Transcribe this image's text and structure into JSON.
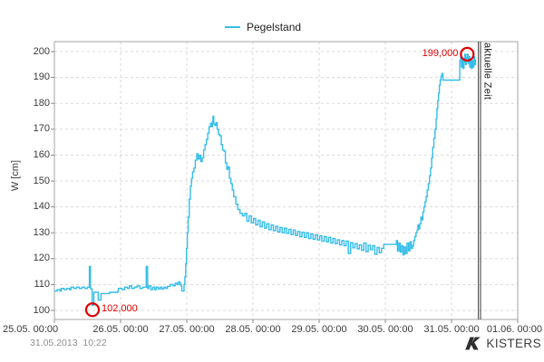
{
  "legend": {
    "label": "Pegelstand"
  },
  "y_axis_title": "W [cm]",
  "footer": {
    "timestamp": "31.05.2013  10:22",
    "brand": "KISTERS"
  },
  "colors": {
    "series": "#35bdea",
    "annotation": "#e00000",
    "grid": "#d9d9d9",
    "plot_border": "#a6a6a6",
    "tick": "#8a8a8a",
    "current_time_line": "#4a4a4a"
  },
  "chart_data": {
    "type": "line",
    "title": "",
    "ylabel": "W [cm]",
    "xlabel": "",
    "legend_position": "top",
    "grid": true,
    "x_unit": "hours since 25.05.2013 00:00",
    "x_range": [
      0,
      168
    ],
    "y_range": [
      96.5,
      203.8
    ],
    "y_ticks": [
      100,
      110,
      120,
      130,
      140,
      150,
      160,
      170,
      180,
      190,
      200
    ],
    "x_ticks": [
      {
        "hours": 0,
        "label": "25.05. 00:00"
      },
      {
        "hours": 24,
        "label": "26.05. 00:00"
      },
      {
        "hours": 48,
        "label": "27.05. 00:00"
      },
      {
        "hours": 72,
        "label": "28.05. 00:00"
      },
      {
        "hours": 96,
        "label": "29.05. 00:00"
      },
      {
        "hours": 120,
        "label": "30.05. 00:00"
      },
      {
        "hours": 144,
        "label": "31.05. 00:00"
      },
      {
        "hours": 168,
        "label": "01.06. 00:00"
      }
    ],
    "annotations": [
      {
        "label": "102,000",
        "hours": 13.8,
        "value": 102,
        "text_side": "right"
      },
      {
        "label": "199,000",
        "hours": 149.7,
        "value": 199,
        "text_side": "left"
      }
    ],
    "current_time": {
      "hours": 154.1,
      "label": "aktuelle Zeit"
    },
    "series": [
      {
        "name": "Pegelstand",
        "color": "#35bdea",
        "interpolation": "step-after",
        "points": [
          [
            0,
            107.5
          ],
          [
            1,
            108
          ],
          [
            2,
            107.5
          ],
          [
            2.5,
            108.5
          ],
          [
            3.5,
            108
          ],
          [
            4.5,
            108.5
          ],
          [
            5.5,
            108
          ],
          [
            6,
            109
          ],
          [
            7,
            108.5
          ],
          [
            8,
            109
          ],
          [
            9,
            108.5
          ],
          [
            10,
            109
          ],
          [
            11,
            108.5
          ],
          [
            12,
            109
          ],
          [
            12.6,
            109
          ],
          [
            12.7,
            117
          ],
          [
            12.9,
            117
          ],
          [
            13.1,
            108.5
          ],
          [
            13.5,
            108
          ],
          [
            13.7,
            102
          ],
          [
            14.1,
            102
          ],
          [
            14.3,
            107
          ],
          [
            15.6,
            107
          ],
          [
            15.9,
            104
          ],
          [
            16.6,
            104
          ],
          [
            16.9,
            106.5
          ],
          [
            18,
            106.5
          ],
          [
            20,
            107
          ],
          [
            22,
            107
          ],
          [
            23,
            107.5
          ],
          [
            23.2,
            108.5
          ],
          [
            24.5,
            108
          ],
          [
            25.5,
            109
          ],
          [
            26.5,
            108.5
          ],
          [
            27.2,
            109.5
          ],
          [
            28,
            108.5
          ],
          [
            29,
            109
          ],
          [
            30,
            109.5
          ],
          [
            31,
            108.5
          ],
          [
            32,
            109
          ],
          [
            33,
            109
          ],
          [
            33.3,
            117
          ],
          [
            33.6,
            117
          ],
          [
            33.8,
            108.5
          ],
          [
            34.3,
            109.5
          ],
          [
            35,
            108
          ],
          [
            35.7,
            109
          ],
          [
            36.4,
            108
          ],
          [
            37,
            109
          ],
          [
            37.7,
            108.3
          ],
          [
            38.4,
            109
          ],
          [
            39,
            108.3
          ],
          [
            39.7,
            109
          ],
          [
            40.4,
            108.5
          ],
          [
            41,
            109.3
          ],
          [
            42,
            110
          ],
          [
            43,
            109.5
          ],
          [
            43.8,
            110.5
          ],
          [
            44.5,
            110
          ],
          [
            45,
            111
          ],
          [
            45.6,
            110
          ],
          [
            46,
            109.5
          ],
          [
            46.2,
            107.5
          ],
          [
            46.8,
            107.5
          ],
          [
            47,
            110
          ],
          [
            47.3,
            113
          ],
          [
            47.6,
            118
          ],
          [
            47.9,
            124
          ],
          [
            48.2,
            130
          ],
          [
            48.5,
            136
          ],
          [
            48.9,
            143
          ],
          [
            49.3,
            148
          ],
          [
            49.7,
            151
          ],
          [
            50.1,
            153.5
          ],
          [
            50.6,
            155
          ],
          [
            51.1,
            158
          ],
          [
            51.6,
            160.5
          ],
          [
            52.1,
            158.5
          ],
          [
            52.6,
            160
          ],
          [
            53.1,
            157.5
          ],
          [
            53.6,
            159
          ],
          [
            54.1,
            162
          ],
          [
            54.6,
            164
          ],
          [
            55.1,
            166
          ],
          [
            55.6,
            168.5
          ],
          [
            56.1,
            171
          ],
          [
            56.6,
            172.3
          ],
          [
            57,
            171
          ],
          [
            57.3,
            173
          ],
          [
            57.5,
            175
          ],
          [
            57.8,
            172
          ],
          [
            58.2,
            171.5
          ],
          [
            58.6,
            172.5
          ],
          [
            59,
            170
          ],
          [
            59.5,
            168
          ],
          [
            60,
            167.5
          ],
          [
            60.5,
            164
          ],
          [
            61,
            162
          ],
          [
            61.5,
            161.5
          ],
          [
            62,
            157
          ],
          [
            62.5,
            154.5
          ],
          [
            63,
            155.5
          ],
          [
            63.5,
            151
          ],
          [
            64,
            149
          ],
          [
            64.5,
            146.5
          ],
          [
            65,
            144
          ],
          [
            65.8,
            141
          ],
          [
            66.5,
            139
          ],
          [
            67.3,
            137.5
          ],
          [
            68.2,
            136.5
          ],
          [
            69,
            137.5
          ],
          [
            69.8,
            134.5
          ],
          [
            70.6,
            136.5
          ],
          [
            71.4,
            133.8
          ],
          [
            72.2,
            135.5
          ],
          [
            73,
            133
          ],
          [
            73.8,
            134.8
          ],
          [
            74.6,
            132.3
          ],
          [
            75.4,
            134.2
          ],
          [
            76.2,
            131.8
          ],
          [
            77,
            133.5
          ],
          [
            77.8,
            131.2
          ],
          [
            78.6,
            133
          ],
          [
            79.4,
            130.8
          ],
          [
            80.2,
            132.5
          ],
          [
            81,
            130.3
          ],
          [
            81.8,
            132
          ],
          [
            82.6,
            130
          ],
          [
            83.4,
            131.8
          ],
          [
            84.2,
            129.8
          ],
          [
            85,
            131.3
          ],
          [
            85.8,
            129.3
          ],
          [
            86.6,
            131
          ],
          [
            87.4,
            129
          ],
          [
            88.2,
            130.5
          ],
          [
            89,
            128.5
          ],
          [
            89.8,
            130.2
          ],
          [
            90.6,
            128.2
          ],
          [
            91.4,
            130
          ],
          [
            92.2,
            127.8
          ],
          [
            93,
            129.5
          ],
          [
            93.8,
            127.5
          ],
          [
            94.6,
            129.2
          ],
          [
            95.4,
            127.2
          ],
          [
            96.2,
            128.8
          ],
          [
            97,
            126.8
          ],
          [
            97.8,
            128.5
          ],
          [
            98.6,
            126.5
          ],
          [
            99.4,
            128.2
          ],
          [
            100.2,
            126
          ],
          [
            101,
            127.8
          ],
          [
            101.8,
            125.8
          ],
          [
            102.6,
            127.3
          ],
          [
            103.4,
            125.3
          ],
          [
            104.2,
            127
          ],
          [
            105,
            125
          ],
          [
            105.8,
            126.8
          ],
          [
            106.6,
            122
          ],
          [
            107.4,
            126.2
          ],
          [
            108.2,
            124.2
          ],
          [
            109,
            125.8
          ],
          [
            109.8,
            123.8
          ],
          [
            110.6,
            125.3
          ],
          [
            111.4,
            123.2
          ],
          [
            112.2,
            126
          ],
          [
            113,
            122.7
          ],
          [
            113.8,
            125.2
          ],
          [
            114.6,
            123.5
          ],
          [
            115.4,
            125
          ],
          [
            116.2,
            121.7
          ],
          [
            117,
            124.3
          ],
          [
            117.8,
            122.3
          ],
          [
            118.6,
            124
          ],
          [
            119.4,
            125.5
          ],
          [
            121,
            125.5
          ],
          [
            123.6,
            125.5
          ],
          [
            124,
            127
          ],
          [
            124.4,
            123
          ],
          [
            124.9,
            126
          ],
          [
            125.4,
            122.5
          ],
          [
            125.9,
            125
          ],
          [
            126.4,
            121.5
          ],
          [
            126.9,
            124.5
          ],
          [
            127.4,
            122
          ],
          [
            127.9,
            126
          ],
          [
            128.4,
            123
          ],
          [
            128.9,
            126.5
          ],
          [
            129.4,
            124
          ],
          [
            129.9,
            125
          ],
          [
            130.3,
            127
          ],
          [
            130.7,
            128.5
          ],
          [
            131.1,
            130
          ],
          [
            131.5,
            131
          ],
          [
            131.8,
            133
          ],
          [
            132.1,
            131.5
          ],
          [
            132.5,
            133.5
          ],
          [
            132.9,
            136
          ],
          [
            133.2,
            135
          ],
          [
            133.6,
            138
          ],
          [
            134,
            140
          ],
          [
            134.4,
            142
          ],
          [
            134.8,
            144
          ],
          [
            135.2,
            146.5
          ],
          [
            135.6,
            149
          ],
          [
            136,
            152
          ],
          [
            136.4,
            155
          ],
          [
            136.8,
            159
          ],
          [
            137.2,
            163
          ],
          [
            137.6,
            166.5
          ],
          [
            138,
            170
          ],
          [
            138.4,
            174
          ],
          [
            138.7,
            178
          ],
          [
            139,
            181
          ],
          [
            139.3,
            184
          ],
          [
            139.6,
            187
          ],
          [
            139.9,
            189
          ],
          [
            140.2,
            190.5
          ],
          [
            140.5,
            191.5
          ],
          [
            140.9,
            189
          ],
          [
            142,
            189
          ],
          [
            144,
            189
          ],
          [
            146.8,
            189
          ],
          [
            147,
            196.5
          ],
          [
            147.3,
            198
          ],
          [
            147.6,
            194
          ],
          [
            147.9,
            197
          ],
          [
            148.2,
            193.5
          ],
          [
            148.5,
            196
          ],
          [
            148.8,
            199
          ],
          [
            149.1,
            195
          ],
          [
            149.4,
            197.5
          ],
          [
            149.7,
            199
          ],
          [
            150,
            195.5
          ],
          [
            150.3,
            198
          ],
          [
            150.6,
            194
          ],
          [
            150.9,
            197
          ],
          [
            151.2,
            193.5
          ],
          [
            151.5,
            196.5
          ],
          [
            151.8,
            194
          ],
          [
            152.1,
            198
          ],
          [
            152.4,
            195
          ],
          [
            152.7,
            197
          ]
        ]
      }
    ]
  }
}
